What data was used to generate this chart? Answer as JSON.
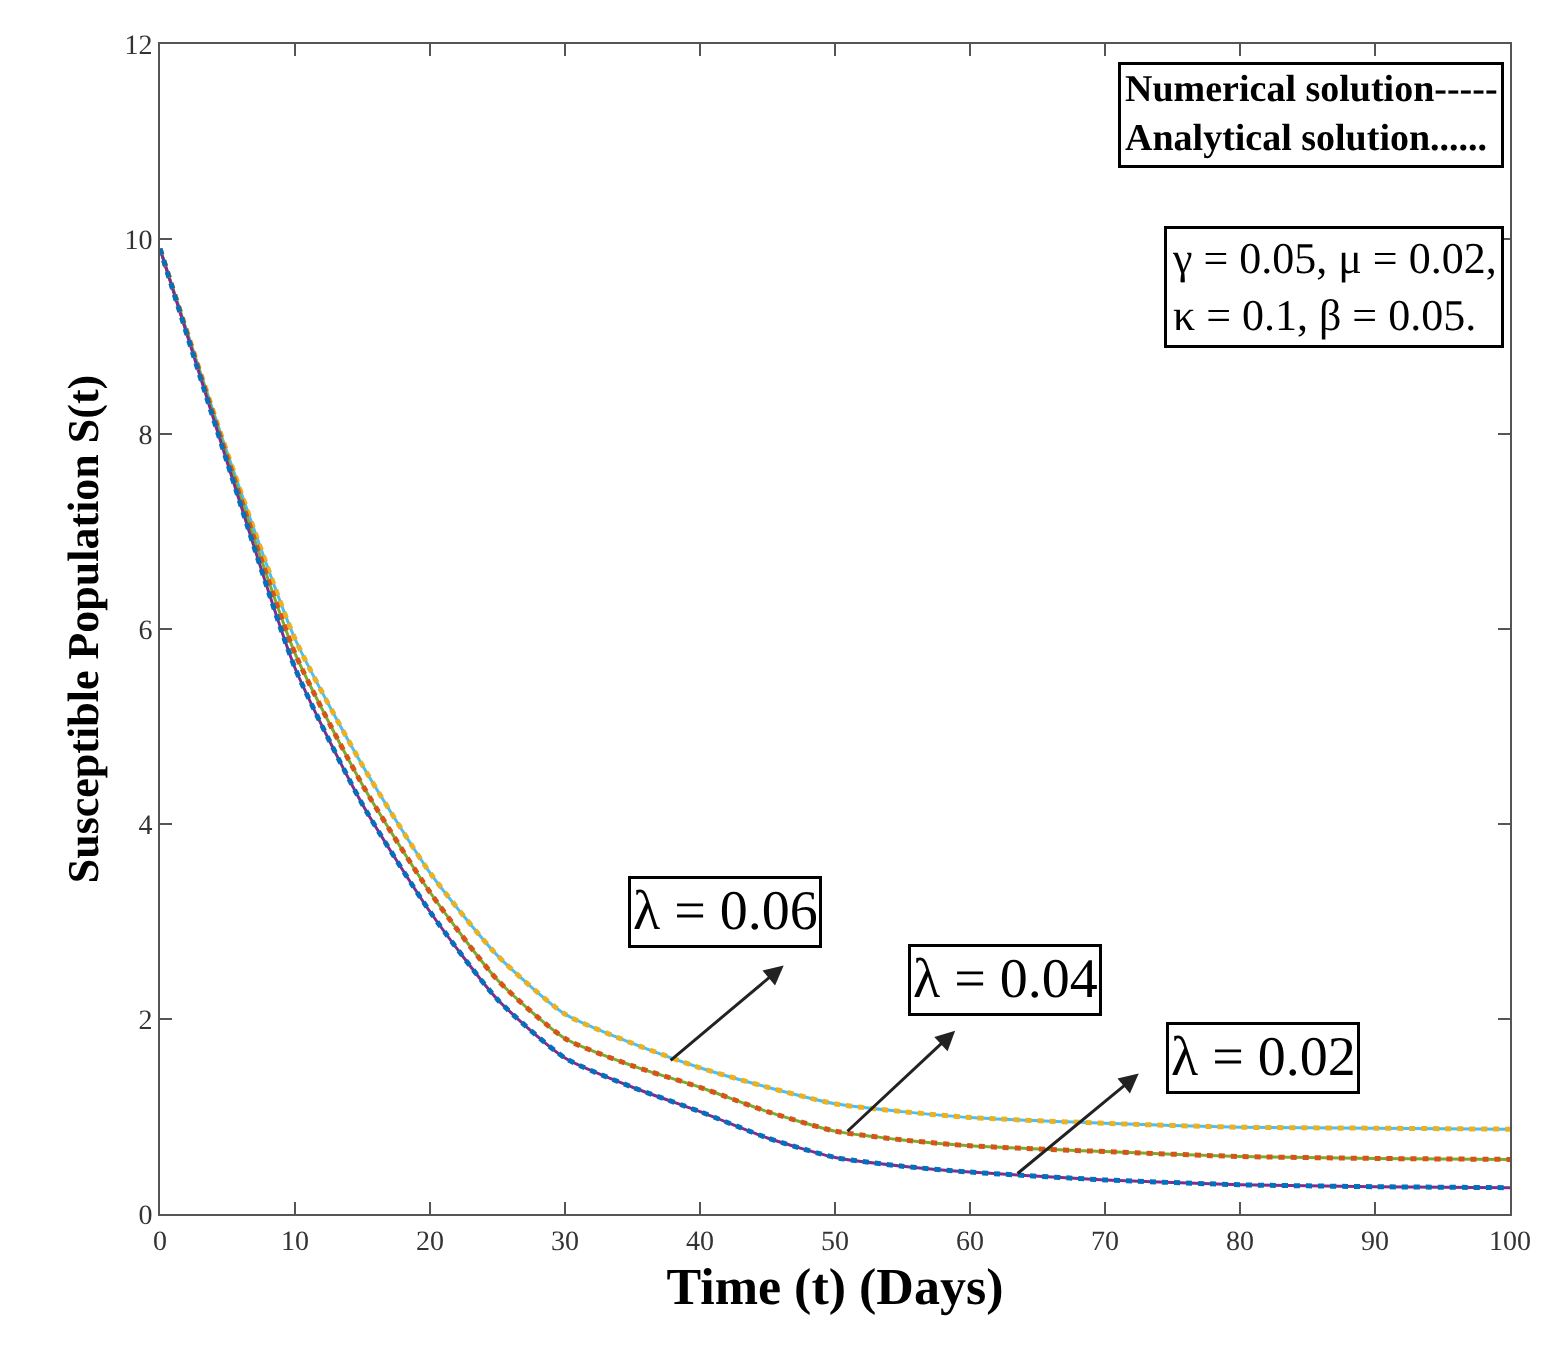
{
  "chart_data": {
    "type": "line",
    "xlabel": "Time (t) (Days)",
    "ylabel": "Susceptible Population S(t)",
    "x": [
      0,
      5,
      10,
      15,
      20,
      25,
      30,
      35,
      40,
      45,
      50,
      55,
      60,
      70,
      80,
      90,
      100
    ],
    "series": [
      {
        "color": "#4dbeee",
        "line_style": "solid",
        "values": [
          9.9,
          7.8,
          5.9,
          4.6,
          3.5,
          2.65,
          2.05,
          1.75,
          1.5,
          1.3,
          1.13,
          1.05,
          0.99,
          0.93,
          0.89,
          0.88,
          0.87
        ]
      },
      {
        "color": "#77ac30",
        "line_style": "solid",
        "values": [
          9.9,
          7.75,
          5.75,
          4.4,
          3.3,
          2.4,
          1.8,
          1.52,
          1.3,
          1.05,
          0.85,
          0.76,
          0.7,
          0.64,
          0.59,
          0.57,
          0.56
        ]
      },
      {
        "color": "#7e2f8e",
        "line_style": "solid",
        "values": [
          9.9,
          7.7,
          5.6,
          4.2,
          3.1,
          2.2,
          1.6,
          1.3,
          1.05,
          0.78,
          0.58,
          0.49,
          0.43,
          0.35,
          0.3,
          0.28,
          0.27
        ]
      },
      {
        "color": "#edb120",
        "line_style": "dotted",
        "values": [
          9.9,
          7.8,
          5.9,
          4.6,
          3.5,
          2.65,
          2.05,
          1.75,
          1.5,
          1.3,
          1.13,
          1.05,
          0.99,
          0.93,
          0.89,
          0.88,
          0.87
        ]
      },
      {
        "color": "#d95319",
        "line_style": "dotted",
        "values": [
          9.9,
          7.75,
          5.75,
          4.4,
          3.3,
          2.4,
          1.8,
          1.52,
          1.3,
          1.05,
          0.85,
          0.76,
          0.7,
          0.64,
          0.59,
          0.57,
          0.56
        ]
      },
      {
        "color": "#0072bd",
        "line_style": "dotted",
        "values": [
          9.9,
          7.7,
          5.6,
          4.2,
          3.1,
          2.2,
          1.6,
          1.3,
          1.05,
          0.78,
          0.58,
          0.49,
          0.43,
          0.35,
          0.3,
          0.28,
          0.27
        ]
      }
    ],
    "xlim": [
      0,
      100
    ],
    "xticks": [
      0,
      10,
      20,
      30,
      40,
      50,
      60,
      70,
      80,
      90,
      100
    ],
    "ylim": [
      0,
      12
    ],
    "yticks": [
      0,
      2,
      4,
      6,
      8,
      10,
      12
    ],
    "marker": "none",
    "annotations": [
      "Numerical solution-----\nAnalytical solution......",
      "γ = 0.05, μ = 0.02,\nκ = 0.1, β = 0.05.",
      {
        "text": "λ = 0.06",
        "x": 37.6,
        "y": 1.55
      },
      {
        "text": "λ = 0.04",
        "x": 50.7,
        "y": 0.82
      },
      {
        "text": "λ = 0.02",
        "x": 63.3,
        "y": 0.39
      }
    ]
  }
}
